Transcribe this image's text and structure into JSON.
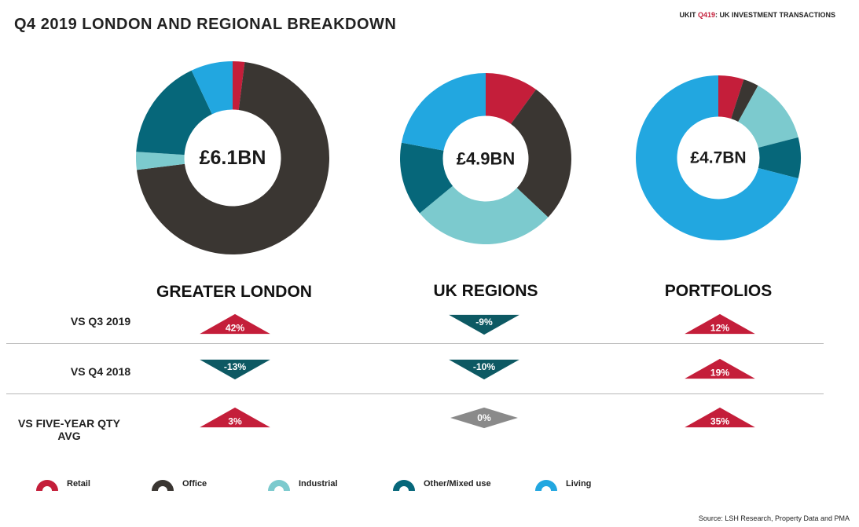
{
  "header": {
    "title": "Q4 2019 LONDON AND REGIONAL BREAKDOWN",
    "tag_prefix": "UKIT",
    "tag_accent": "Q419",
    "tag_suffix": ": UK INVESTMENT TRANSACTIONS"
  },
  "colors": {
    "retail": "#c41e3a",
    "office": "#3a3632",
    "industrial": "#7ccace",
    "other": "#06677a",
    "living": "#22a7e0",
    "up": "#c41e3a",
    "down": "#0d5963",
    "flat": "#8a8a8a"
  },
  "chart_data": [
    {
      "type": "pie",
      "title": "GREATER LONDON",
      "center_label": "£6.1BN",
      "categories": [
        "Retail",
        "Office",
        "Industrial",
        "Other/Mixed use",
        "Living"
      ],
      "values": [
        2,
        71,
        3,
        17,
        7
      ]
    },
    {
      "type": "pie",
      "title": "UK REGIONS",
      "center_label": "£4.9BN",
      "categories": [
        "Retail",
        "Office",
        "Industrial",
        "Other/Mixed use",
        "Living"
      ],
      "values": [
        10,
        27,
        27,
        14,
        22
      ]
    },
    {
      "type": "pie",
      "title": "PORTFOLIOS",
      "center_label": "£4.7BN",
      "categories": [
        "Retail",
        "Office",
        "Industrial",
        "Other/Mixed use",
        "Living"
      ],
      "values": [
        5,
        3,
        13,
        8,
        71
      ]
    }
  ],
  "comparison": {
    "rows": [
      "VS Q3 2019",
      "VS Q4 2018",
      "VS FIVE-YEAR QTY AVG"
    ],
    "cells": [
      [
        {
          "label": "42%",
          "direction": "up"
        },
        {
          "label": "-9%",
          "direction": "down"
        },
        {
          "label": "12%",
          "direction": "up"
        }
      ],
      [
        {
          "label": "-13%",
          "direction": "down"
        },
        {
          "label": "-10%",
          "direction": "down"
        },
        {
          "label": "19%",
          "direction": "up"
        }
      ],
      [
        {
          "label": "3%",
          "direction": "up"
        },
        {
          "label": "0%",
          "direction": "flat"
        },
        {
          "label": "35%",
          "direction": "up"
        }
      ]
    ]
  },
  "legend": [
    {
      "label": "Retail",
      "color_key": "retail"
    },
    {
      "label": "Office",
      "color_key": "office"
    },
    {
      "label": "Industrial",
      "color_key": "industrial"
    },
    {
      "label": "Other/Mixed use",
      "color_key": "other"
    },
    {
      "label": "Living",
      "color_key": "living"
    }
  ],
  "source": "Source: LSH Research, Property Data and PMA"
}
